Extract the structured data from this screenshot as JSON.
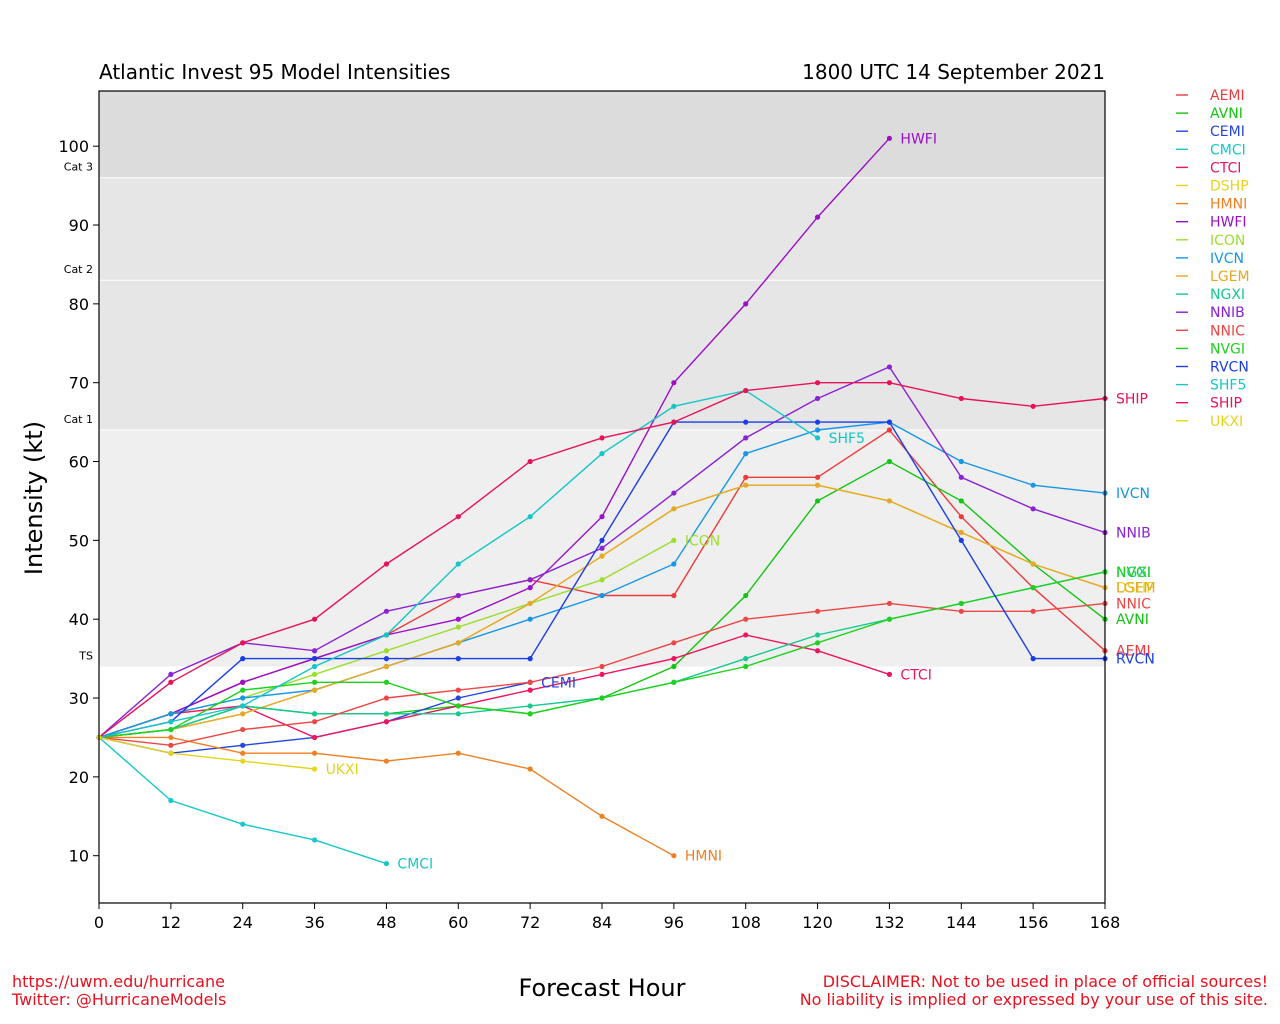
{
  "header": {
    "title": "Atlantic Invest 95 Model Intensities",
    "datetime": "1800 UTC 14 September 2021"
  },
  "footer": {
    "url": "https://uwm.edu/hurricane",
    "twitter": "Twitter: @HurricaneModels",
    "disclaimer1": "DISCLAIMER: Not to be used in place of official sources!",
    "disclaimer2": "No liability is implied or expressed by your use of this site."
  },
  "chart_data": {
    "type": "line",
    "title": "Atlantic Invest 95 Model Intensities",
    "subtitle": "1800 UTC 14 September 2021",
    "xlabel": "Forecast Hour",
    "ylabel": "Intensity (kt)",
    "xlim": [
      0,
      168
    ],
    "ylim": [
      4,
      107
    ],
    "xticks": [
      0,
      12,
      24,
      36,
      48,
      60,
      72,
      84,
      96,
      108,
      120,
      132,
      144,
      156,
      168
    ],
    "yticks": [
      10,
      20,
      30,
      40,
      50,
      60,
      70,
      80,
      90,
      100
    ],
    "categories": [
      {
        "label": "TS",
        "from": 34,
        "to": 64,
        "color": "#efefef"
      },
      {
        "label": "Cat 1",
        "from": 64,
        "to": 83,
        "color": "#e6e6e6"
      },
      {
        "label": "Cat 2",
        "from": 83,
        "to": 96,
        "color": "#e6e6e6"
      },
      {
        "label": "Cat 3",
        "from": 96,
        "to": 107,
        "color": "#dcdcdc"
      }
    ],
    "legend_position": "right",
    "series": [
      {
        "name": "AEMI",
        "color": "#ee3a3a",
        "x": [
          0,
          12,
          24,
          36,
          48,
          60,
          72,
          84,
          96,
          108,
          120,
          132,
          144,
          156,
          168
        ],
        "y": [
          25,
          28,
          32,
          35,
          38,
          43,
          45,
          43,
          43,
          58,
          58,
          64,
          53,
          44,
          36
        ]
      },
      {
        "name": "AVNI",
        "color": "#13c413",
        "x": [
          0,
          12,
          24,
          36,
          48,
          60,
          72,
          84,
          96,
          108,
          120,
          132,
          144,
          156,
          168
        ],
        "y": [
          25,
          26,
          29,
          28,
          28,
          29,
          28,
          30,
          34,
          43,
          55,
          60,
          55,
          47,
          40
        ]
      },
      {
        "name": "CEMI",
        "color": "#2345e0",
        "x": [
          0,
          12,
          24,
          36,
          48,
          60,
          72
        ],
        "y": [
          25,
          23,
          24,
          25,
          27,
          30,
          32
        ]
      },
      {
        "name": "CMCI",
        "color": "#17c8c8",
        "x": [
          0,
          12,
          24,
          36,
          48
        ],
        "y": [
          25,
          17,
          14,
          12,
          9
        ]
      },
      {
        "name": "CTCI",
        "color": "#ee1560",
        "x": [
          0,
          12,
          24,
          36,
          48,
          60,
          72,
          84,
          96,
          108,
          120,
          132
        ],
        "y": [
          25,
          28,
          29,
          25,
          27,
          29,
          31,
          33,
          35,
          38,
          36,
          33
        ]
      },
      {
        "name": "DSHP",
        "color": "#e7d320",
        "x": [
          0,
          12,
          24,
          36,
          48,
          60,
          72,
          84,
          96,
          108,
          120,
          132,
          144,
          156,
          168
        ],
        "y": [
          25,
          26,
          28,
          31,
          34,
          37,
          42,
          48,
          54,
          57,
          57,
          55,
          51,
          47,
          44
        ]
      },
      {
        "name": "HMNI",
        "color": "#ee8023",
        "x": [
          0,
          12,
          24,
          36,
          48,
          60,
          72,
          84,
          96
        ],
        "y": [
          25,
          25,
          23,
          23,
          22,
          23,
          21,
          15,
          10
        ]
      },
      {
        "name": "HWFI",
        "color": "#9a0fc8",
        "x": [
          0,
          12,
          24,
          36,
          48,
          60,
          72,
          84,
          96,
          108,
          120,
          132
        ],
        "y": [
          25,
          28,
          32,
          35,
          38,
          40,
          44,
          53,
          70,
          80,
          91,
          101
        ]
      },
      {
        "name": "ICON",
        "color": "#9adf2e",
        "x": [
          0,
          12,
          24,
          36,
          48,
          60,
          72,
          84,
          96
        ],
        "y": [
          25,
          28,
          30,
          33,
          36,
          39,
          42,
          45,
          50
        ]
      },
      {
        "name": "IVCN",
        "color": "#1696e6",
        "x": [
          0,
          12,
          24,
          36,
          48,
          60,
          72,
          84,
          96,
          108,
          120,
          132,
          144,
          156,
          168
        ],
        "y": [
          25,
          28,
          30,
          31,
          34,
          37,
          40,
          43,
          47,
          61,
          64,
          65,
          60,
          57,
          56
        ]
      },
      {
        "name": "LGEM",
        "color": "#e6a828",
        "x": [
          0,
          12,
          24,
          36,
          48,
          60,
          72,
          84,
          96,
          108,
          120,
          132,
          144,
          156,
          168
        ],
        "y": [
          25,
          26,
          28,
          31,
          34,
          37,
          42,
          48,
          54,
          57,
          57,
          55,
          51,
          47,
          44
        ]
      },
      {
        "name": "NGXI",
        "color": "#16c892",
        "x": [
          0,
          12,
          24,
          36,
          48,
          60,
          72,
          84,
          96,
          108,
          120,
          132,
          144,
          156,
          168
        ],
        "y": [
          25,
          26,
          29,
          28,
          28,
          28,
          29,
          30,
          32,
          35,
          38,
          40,
          42,
          44,
          46
        ]
      },
      {
        "name": "NNIB",
        "color": "#8a22d4",
        "x": [
          0,
          12,
          24,
          36,
          48,
          60,
          72,
          84,
          96,
          108,
          120,
          132,
          144,
          156,
          168
        ],
        "y": [
          25,
          33,
          37,
          36,
          41,
          43,
          45,
          49,
          56,
          63,
          68,
          72,
          58,
          54,
          51
        ]
      },
      {
        "name": "NNIC",
        "color": "#ee4545",
        "x": [
          0,
          12,
          24,
          36,
          48,
          60,
          72,
          84,
          96,
          108,
          120,
          132,
          144,
          156,
          168
        ],
        "y": [
          25,
          24,
          26,
          27,
          30,
          31,
          32,
          34,
          37,
          40,
          41,
          42,
          41,
          41,
          42
        ]
      },
      {
        "name": "NVGI",
        "color": "#1fd11f",
        "x": [
          0,
          12,
          24,
          36,
          48,
          60,
          72,
          84,
          96,
          108,
          120,
          132,
          144,
          156,
          168
        ],
        "y": [
          25,
          26,
          31,
          32,
          32,
          29,
          28,
          30,
          32,
          34,
          37,
          40,
          42,
          44,
          46
        ]
      },
      {
        "name": "RVCN",
        "color": "#1a3ee6",
        "x": [
          0,
          12,
          24,
          36,
          48,
          60,
          72,
          84,
          96,
          108,
          120,
          132,
          144,
          156,
          168
        ],
        "y": [
          25,
          27,
          35,
          35,
          35,
          35,
          35,
          50,
          65,
          65,
          65,
          65,
          50,
          35,
          35
        ]
      },
      {
        "name": "SHF5",
        "color": "#15c6c6",
        "x": [
          0,
          12,
          24,
          36,
          48,
          60,
          72,
          84,
          96,
          108,
          120
        ],
        "y": [
          25,
          27,
          29,
          34,
          38,
          47,
          53,
          61,
          67,
          69,
          63
        ]
      },
      {
        "name": "SHIP",
        "color": "#e8125a",
        "x": [
          0,
          12,
          24,
          36,
          48,
          60,
          72,
          84,
          96,
          108,
          120,
          132,
          144,
          156,
          168
        ],
        "y": [
          25,
          32,
          37,
          40,
          47,
          53,
          60,
          63,
          65,
          69,
          70,
          70,
          68,
          67,
          68
        ]
      },
      {
        "name": "UKXI",
        "color": "#e3d51a",
        "x": [
          0,
          12,
          24,
          36
        ],
        "y": [
          25,
          23,
          22,
          21
        ]
      }
    ]
  }
}
